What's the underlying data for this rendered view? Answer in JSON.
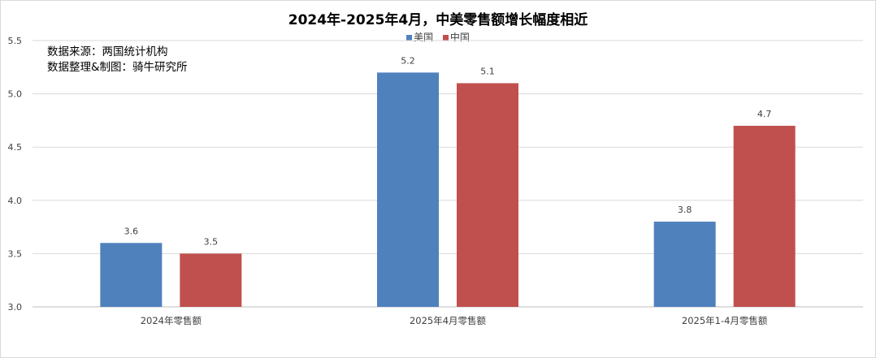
{
  "chart_data": {
    "type": "bar",
    "title": "2024年-2025年4月，中美零售额增长幅度相近",
    "annotations": [
      "数据来源：两国统计机构",
      "数据整理&制图：骑牛研究所"
    ],
    "categories": [
      "2024年零售额",
      "2025年4月零售额",
      "2025年1-4月零售额"
    ],
    "series": [
      {
        "name": "美国",
        "color": "#4F81BD",
        "values": [
          3.6,
          5.2,
          3.8
        ]
      },
      {
        "name": "中国",
        "color": "#C0504D",
        "values": [
          3.5,
          5.1,
          4.7
        ]
      }
    ],
    "ylim": [
      3.0,
      5.5
    ],
    "yticks": [
      "3.0",
      "3.5",
      "4.0",
      "4.5",
      "5.0",
      "5.5"
    ],
    "grid": true,
    "legend_position": "top-center",
    "data_labels": true
  }
}
